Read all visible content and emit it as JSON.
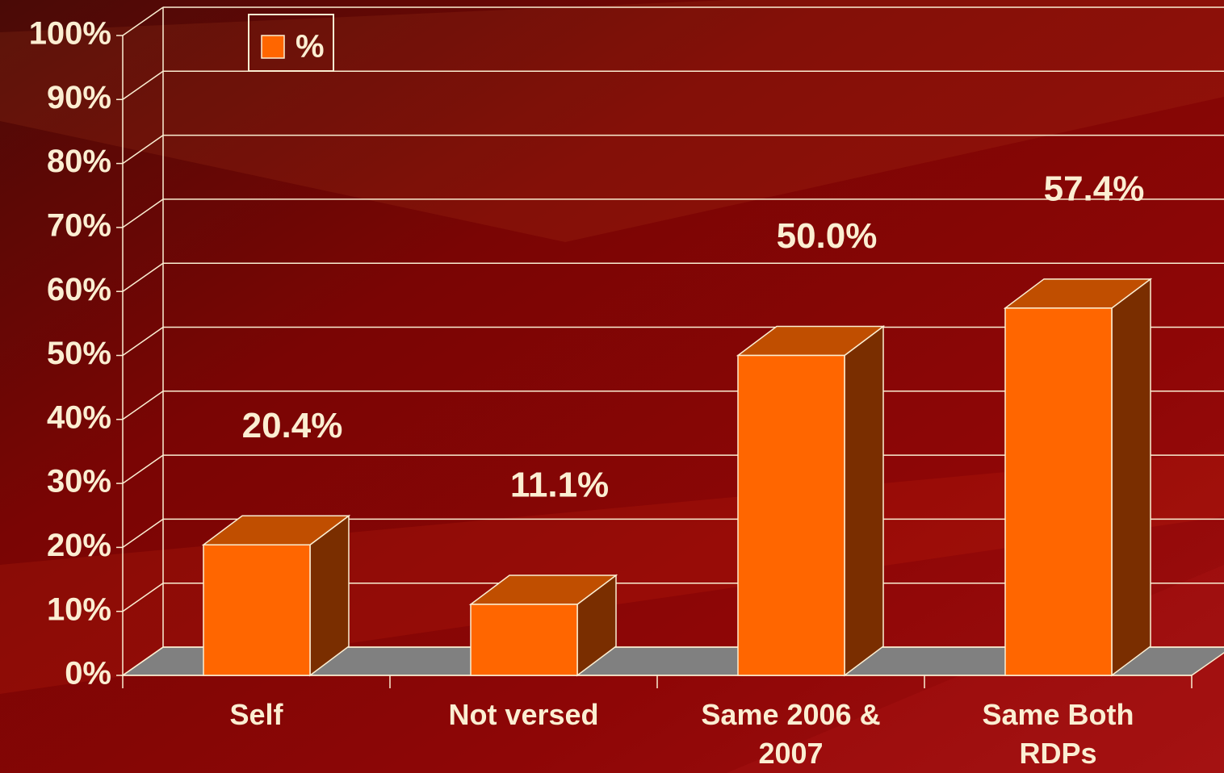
{
  "chart_data": {
    "type": "bar3d",
    "categories": [
      "Self",
      "Not versed",
      "Same 2006 & 2007",
      "Same Both RDPs"
    ],
    "series": [
      {
        "name": "%",
        "color": "#ff6600",
        "values": [
          20.4,
          11.1,
          50.0,
          57.4
        ],
        "value_labels": [
          "20.4%",
          "11.1%",
          "50.0%",
          "57.4%"
        ]
      }
    ],
    "ylim": [
      0,
      100
    ],
    "yticks": [
      {
        "value": 0,
        "label": "0%"
      },
      {
        "value": 10,
        "label": "10%"
      },
      {
        "value": 20,
        "label": "20%"
      },
      {
        "value": 30,
        "label": "30%"
      },
      {
        "value": 40,
        "label": "40%"
      },
      {
        "value": 50,
        "label": "50%"
      },
      {
        "value": 60,
        "label": "60%"
      },
      {
        "value": 70,
        "label": "70%"
      },
      {
        "value": 80,
        "label": "80%"
      },
      {
        "value": 90,
        "label": "90%"
      },
      {
        "value": 100,
        "label": "100%"
      }
    ],
    "grid": true,
    "legend": "top-left"
  }
}
